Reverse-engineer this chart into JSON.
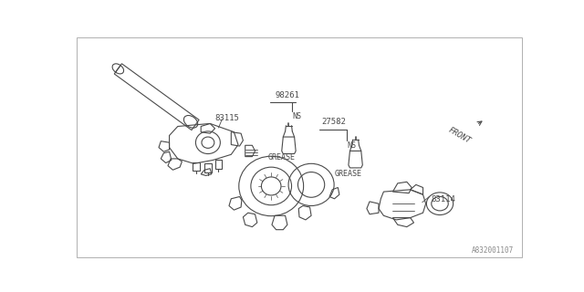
{
  "background_color": "#ffffff",
  "border_color": "#b0b0b0",
  "line_color": "#4a4a4a",
  "part_label_83115": "83115",
  "part_label_98261": "98261",
  "part_label_27582": "27582",
  "part_label_83114": "83114",
  "label_ns1": "NS",
  "label_ns2": "NS",
  "label_grease1": "GREASE",
  "label_grease2": "GREASE",
  "label_front": "FRONT",
  "diagram_id": "A832001107",
  "figsize": [
    6.4,
    3.2
  ],
  "dpi": 100
}
